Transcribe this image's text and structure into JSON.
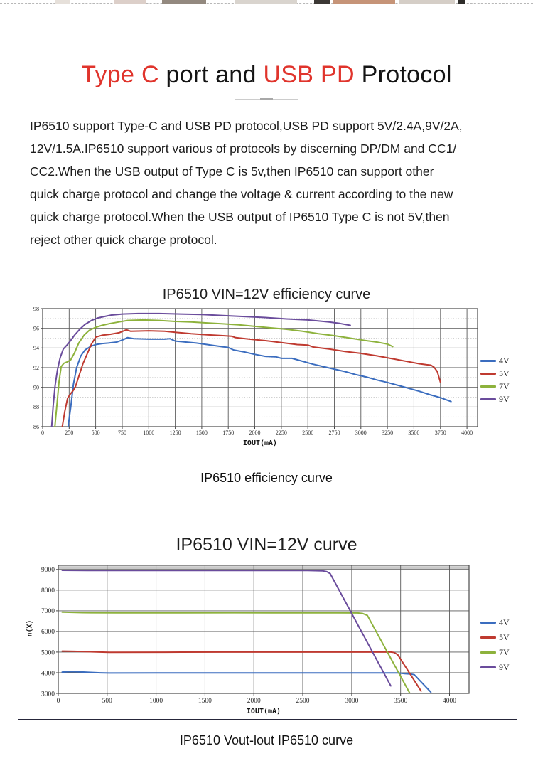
{
  "page": {
    "title": {
      "segments": [
        {
          "text": "Type C",
          "color": "#e0342c"
        },
        {
          "text": " port and ",
          "color": "#141414"
        },
        {
          "text": "USB PD",
          "color": "#e0342c"
        },
        {
          "text": " Protocol",
          "color": "#141414"
        }
      ]
    },
    "intro_lines": [
      "IP6510 support Type-C and USB PD protocol,USB PD support 5V/2.4A,9V/2A,",
      "12V/1.5A.IP6510 support various of protocols by discerning DP/DM and CC1/",
      "CC2.When the USB output of Type C is 5v,then IP6510 can support other",
      "quick charge protocol and change the voltage & current according to the new",
      "quick charge protocol.When the USB output of IP6510 Type C is not 5V,then",
      "reject other quick charge protocol."
    ],
    "captions": {
      "chart1": "IP6510 efficiency curve",
      "chart2": "IP6510 Vout-lout IP6510 curve"
    },
    "accent_color": "#e0342c"
  },
  "chart_data": [
    {
      "type": "line",
      "title": "IP6510 VIN=12V efficiency curve",
      "xlabel": "IOUT(mA)",
      "ylabel": "",
      "xlim": [
        0,
        4100
      ],
      "ylim": [
        86,
        98
      ],
      "x_ticks": [
        0,
        250,
        500,
        750,
        1000,
        1250,
        1500,
        1750,
        2000,
        2250,
        2500,
        2750,
        3000,
        3250,
        3500,
        3750,
        4000
      ],
      "y_ticks": [
        86,
        88,
        90,
        92,
        94,
        96,
        98
      ],
      "y_minor": [
        87,
        89,
        91,
        93,
        95,
        97
      ],
      "grid": true,
      "legend_position": "right",
      "series": [
        {
          "name": "4V",
          "color": "#3b6dbf",
          "points": [
            [
              240,
              86
            ],
            [
              265,
              88
            ],
            [
              290,
              90.3
            ],
            [
              320,
              92
            ],
            [
              360,
              93.2
            ],
            [
              400,
              93.8
            ],
            [
              450,
              94.15
            ],
            [
              500,
              94.35
            ],
            [
              560,
              94.45
            ],
            [
              620,
              94.5
            ],
            [
              700,
              94.6
            ],
            [
              760,
              94.85
            ],
            [
              800,
              95.05
            ],
            [
              860,
              94.95
            ],
            [
              1000,
              94.9
            ],
            [
              1150,
              94.9
            ],
            [
              1200,
              94.95
            ],
            [
              1250,
              94.7
            ],
            [
              1350,
              94.6
            ],
            [
              1450,
              94.5
            ],
            [
              1550,
              94.35
            ],
            [
              1650,
              94.2
            ],
            [
              1750,
              94.05
            ],
            [
              1800,
              93.8
            ],
            [
              1900,
              93.6
            ],
            [
              2000,
              93.35
            ],
            [
              2100,
              93.15
            ],
            [
              2200,
              93.1
            ],
            [
              2250,
              92.95
            ],
            [
              2350,
              92.95
            ],
            [
              2450,
              92.65
            ],
            [
              2550,
              92.35
            ],
            [
              2650,
              92.1
            ],
            [
              2750,
              91.85
            ],
            [
              2850,
              91.6
            ],
            [
              2950,
              91.3
            ],
            [
              3050,
              91.05
            ],
            [
              3150,
              90.75
            ],
            [
              3250,
              90.5
            ],
            [
              3350,
              90.2
            ],
            [
              3450,
              89.9
            ],
            [
              3550,
              89.6
            ],
            [
              3650,
              89.25
            ],
            [
              3750,
              88.95
            ],
            [
              3850,
              88.55
            ]
          ]
        },
        {
          "name": "5V",
          "color": "#bf3a30",
          "points": [
            [
              185,
              86
            ],
            [
              210,
              87.6
            ],
            [
              235,
              88.9
            ],
            [
              260,
              89.3
            ],
            [
              290,
              89.7
            ],
            [
              310,
              90.1
            ],
            [
              340,
              91.1
            ],
            [
              380,
              92.4
            ],
            [
              420,
              93.4
            ],
            [
              460,
              94.4
            ],
            [
              500,
              95.1
            ],
            [
              560,
              95.3
            ],
            [
              640,
              95.4
            ],
            [
              720,
              95.55
            ],
            [
              790,
              95.85
            ],
            [
              830,
              95.7
            ],
            [
              900,
              95.72
            ],
            [
              1000,
              95.75
            ],
            [
              1150,
              95.7
            ],
            [
              1250,
              95.6
            ],
            [
              1400,
              95.45
            ],
            [
              1550,
              95.35
            ],
            [
              1700,
              95.25
            ],
            [
              1780,
              95.2
            ],
            [
              1820,
              95.05
            ],
            [
              1950,
              94.9
            ],
            [
              2100,
              94.75
            ],
            [
              2250,
              94.55
            ],
            [
              2400,
              94.35
            ],
            [
              2500,
              94.3
            ],
            [
              2550,
              94.1
            ],
            [
              2700,
              93.9
            ],
            [
              2850,
              93.65
            ],
            [
              3000,
              93.45
            ],
            [
              3150,
              93.2
            ],
            [
              3300,
              92.9
            ],
            [
              3450,
              92.6
            ],
            [
              3550,
              92.4
            ],
            [
              3620,
              92.3
            ],
            [
              3660,
              92.25
            ],
            [
              3690,
              92.05
            ],
            [
              3720,
              91.6
            ],
            [
              3750,
              90.5
            ]
          ]
        },
        {
          "name": "7V",
          "color": "#8db23c",
          "points": [
            [
              115,
              86
            ],
            [
              135,
              88.3
            ],
            [
              155,
              90.6
            ],
            [
              175,
              92.1
            ],
            [
              200,
              92.45
            ],
            [
              235,
              92.6
            ],
            [
              265,
              92.8
            ],
            [
              300,
              93.5
            ],
            [
              340,
              94.5
            ],
            [
              390,
              95.3
            ],
            [
              440,
              95.8
            ],
            [
              500,
              96.1
            ],
            [
              560,
              96.3
            ],
            [
              640,
              96.5
            ],
            [
              720,
              96.65
            ],
            [
              800,
              96.8
            ],
            [
              950,
              96.85
            ],
            [
              1100,
              96.8
            ],
            [
              1250,
              96.7
            ],
            [
              1400,
              96.65
            ],
            [
              1550,
              96.55
            ],
            [
              1700,
              96.45
            ],
            [
              1850,
              96.35
            ],
            [
              2000,
              96.2
            ],
            [
              2150,
              96.05
            ],
            [
              2300,
              95.9
            ],
            [
              2450,
              95.7
            ],
            [
              2600,
              95.45
            ],
            [
              2750,
              95.25
            ],
            [
              2900,
              95
            ],
            [
              3050,
              94.75
            ],
            [
              3150,
              94.6
            ],
            [
              3250,
              94.4
            ],
            [
              3300,
              94.15
            ]
          ]
        },
        {
          "name": "9V",
          "color": "#6a4c9c",
          "points": [
            [
              85,
              86
            ],
            [
              100,
              88.2
            ],
            [
              118,
              90.2
            ],
            [
              140,
              91.8
            ],
            [
              165,
              93
            ],
            [
              195,
              93.9
            ],
            [
              230,
              94.3
            ],
            [
              260,
              94.7
            ],
            [
              300,
              95.3
            ],
            [
              350,
              95.9
            ],
            [
              400,
              96.4
            ],
            [
              460,
              96.8
            ],
            [
              520,
              97.05
            ],
            [
              580,
              97.2
            ],
            [
              650,
              97.35
            ],
            [
              750,
              97.45
            ],
            [
              900,
              97.5
            ],
            [
              1100,
              97.5
            ],
            [
              1300,
              97.45
            ],
            [
              1500,
              97.4
            ],
            [
              1700,
              97.3
            ],
            [
              1900,
              97.2
            ],
            [
              2100,
              97.1
            ],
            [
              2300,
              96.95
            ],
            [
              2500,
              96.85
            ],
            [
              2700,
              96.65
            ],
            [
              2800,
              96.5
            ],
            [
              2900,
              96.3
            ]
          ]
        }
      ]
    },
    {
      "type": "line",
      "title": "IP6510 VIN=12V curve",
      "xlabel": "IOUT(mA)",
      "ylabel": "n(X)",
      "xlim": [
        0,
        4200
      ],
      "ylim": [
        3000,
        9200
      ],
      "x_ticks": [
        0,
        500,
        1000,
        1500,
        2000,
        2500,
        3000,
        3500,
        4000
      ],
      "y_ticks": [
        3000,
        4000,
        5000,
        6000,
        7000,
        8000,
        9000
      ],
      "grid": true,
      "legend_position": "right",
      "highlight_band": {
        "y_from": 9000,
        "y_to": 9160,
        "color": "#c9c9c9"
      },
      "series": [
        {
          "name": "4V",
          "color": "#3b6dbf",
          "points": [
            [
              40,
              4030
            ],
            [
              120,
              4055
            ],
            [
              220,
              4045
            ],
            [
              330,
              4015
            ],
            [
              430,
              3995
            ],
            [
              520,
              3985
            ],
            [
              1000,
              3990
            ],
            [
              1600,
              3990
            ],
            [
              2200,
              3990
            ],
            [
              2800,
              3990
            ],
            [
              3200,
              3990
            ],
            [
              3480,
              3990
            ],
            [
              3540,
              3955
            ],
            [
              3600,
              3940
            ],
            [
              3640,
              3905
            ],
            [
              3810,
              3060
            ]
          ]
        },
        {
          "name": "5V",
          "color": "#bf3a30",
          "points": [
            [
              40,
              5045
            ],
            [
              160,
              5035
            ],
            [
              300,
              5020
            ],
            [
              420,
              5000
            ],
            [
              520,
              4990
            ],
            [
              1100,
              4995
            ],
            [
              1700,
              5000
            ],
            [
              2300,
              5000
            ],
            [
              2900,
              5000
            ],
            [
              3250,
              5000
            ],
            [
              3390,
              5005
            ],
            [
              3430,
              4985
            ],
            [
              3470,
              4880
            ],
            [
              3710,
              3110
            ]
          ]
        },
        {
          "name": "7V",
          "color": "#8db23c",
          "points": [
            [
              40,
              6935
            ],
            [
              250,
              6910
            ],
            [
              600,
              6900
            ],
            [
              1200,
              6900
            ],
            [
              1800,
              6905
            ],
            [
              2400,
              6900
            ],
            [
              2850,
              6900
            ],
            [
              3060,
              6895
            ],
            [
              3110,
              6870
            ],
            [
              3160,
              6780
            ],
            [
              3600,
              2960
            ]
          ]
        },
        {
          "name": "9V",
          "color": "#6a4c9c",
          "points": [
            [
              40,
              8960
            ],
            [
              300,
              8950
            ],
            [
              900,
              8950
            ],
            [
              1500,
              8950
            ],
            [
              2100,
              8950
            ],
            [
              2550,
              8950
            ],
            [
              2700,
              8935
            ],
            [
              2745,
              8895
            ],
            [
              2780,
              8800
            ],
            [
              3400,
              3360
            ]
          ]
        }
      ]
    }
  ]
}
